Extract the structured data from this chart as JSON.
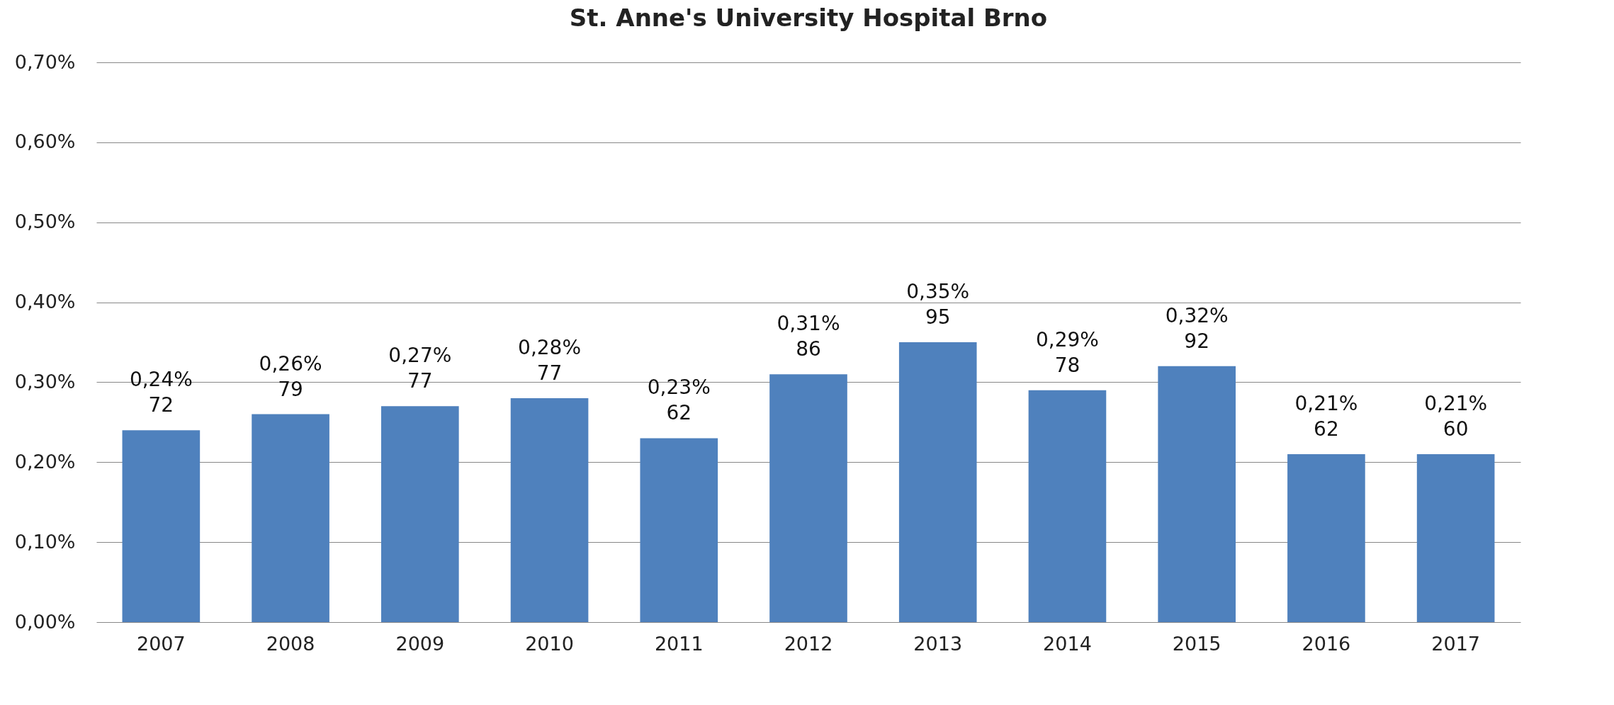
{
  "chart_data": {
    "type": "bar",
    "title": "St. Anne's University Hospital Brno",
    "categories": [
      "2007",
      "2008",
      "2009",
      "2010",
      "2011",
      "2012",
      "2013",
      "2014",
      "2015",
      "2016",
      "2017"
    ],
    "values": [
      0.24,
      0.26,
      0.27,
      0.28,
      0.23,
      0.31,
      0.35,
      0.29,
      0.32,
      0.21,
      0.21
    ],
    "value_labels": [
      "0,24%\n72",
      "0,26%\n79",
      "0,27%\n77",
      "0,28%\n77",
      "0,23%\n62",
      "0,31%\n86",
      "0,35%\n95",
      "0,29%\n78",
      "0,32%\n92",
      "0,21%\n62",
      "0,21%\n60"
    ],
    "color": "#4f81bd",
    "ylim": [
      0,
      0.7
    ],
    "yticks": [
      {
        "value": 0,
        "label": "0,00%"
      },
      {
        "value": 0.1,
        "label": "0,10%"
      },
      {
        "value": 0.2,
        "label": "0,20%"
      },
      {
        "value": 0.3,
        "label": "0,30%"
      },
      {
        "value": 0.4,
        "label": "0,40%"
      },
      {
        "value": 0.5,
        "label": "0,50%"
      },
      {
        "value": 0.6,
        "label": "0,60%"
      },
      {
        "value": 0.7,
        "label": "0,70%"
      }
    ],
    "grid": "y"
  }
}
